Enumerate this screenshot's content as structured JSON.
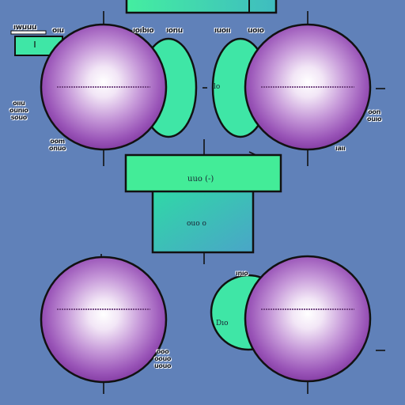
{
  "colors": {
    "background": "#6081b9",
    "sphere_edge": "#8a3fa8",
    "sphere_mid": "#b98fd0",
    "sphere_center": "#ffffff",
    "mint": "#3fe6a6",
    "green_box": "#43ec98",
    "teal_box": "#3fbfb4",
    "outline": "#111111"
  },
  "labels": {
    "top_left_a": "ıwuuu",
    "top_left_b": "oıu",
    "top_mid_a": "ıoıbıo",
    "top_mid_b": "ıonu",
    "top_right_a": "ıuoıı",
    "top_right_b": "uoıo",
    "left_cluster": "oııu\nounıo\nsouo",
    "left_lower": "oom\nonuo",
    "center_small": "lo",
    "right_cluster": "oon\nouıo",
    "right_lower": "ıaıı",
    "middle_box_top": "uuo (-)",
    "middle_box_bottom": "ouo o",
    "lower_mid_tag": "ınıo",
    "lower_left_tag": "Dıo",
    "lower_cluster": "ooo\noouo\nuouo"
  }
}
